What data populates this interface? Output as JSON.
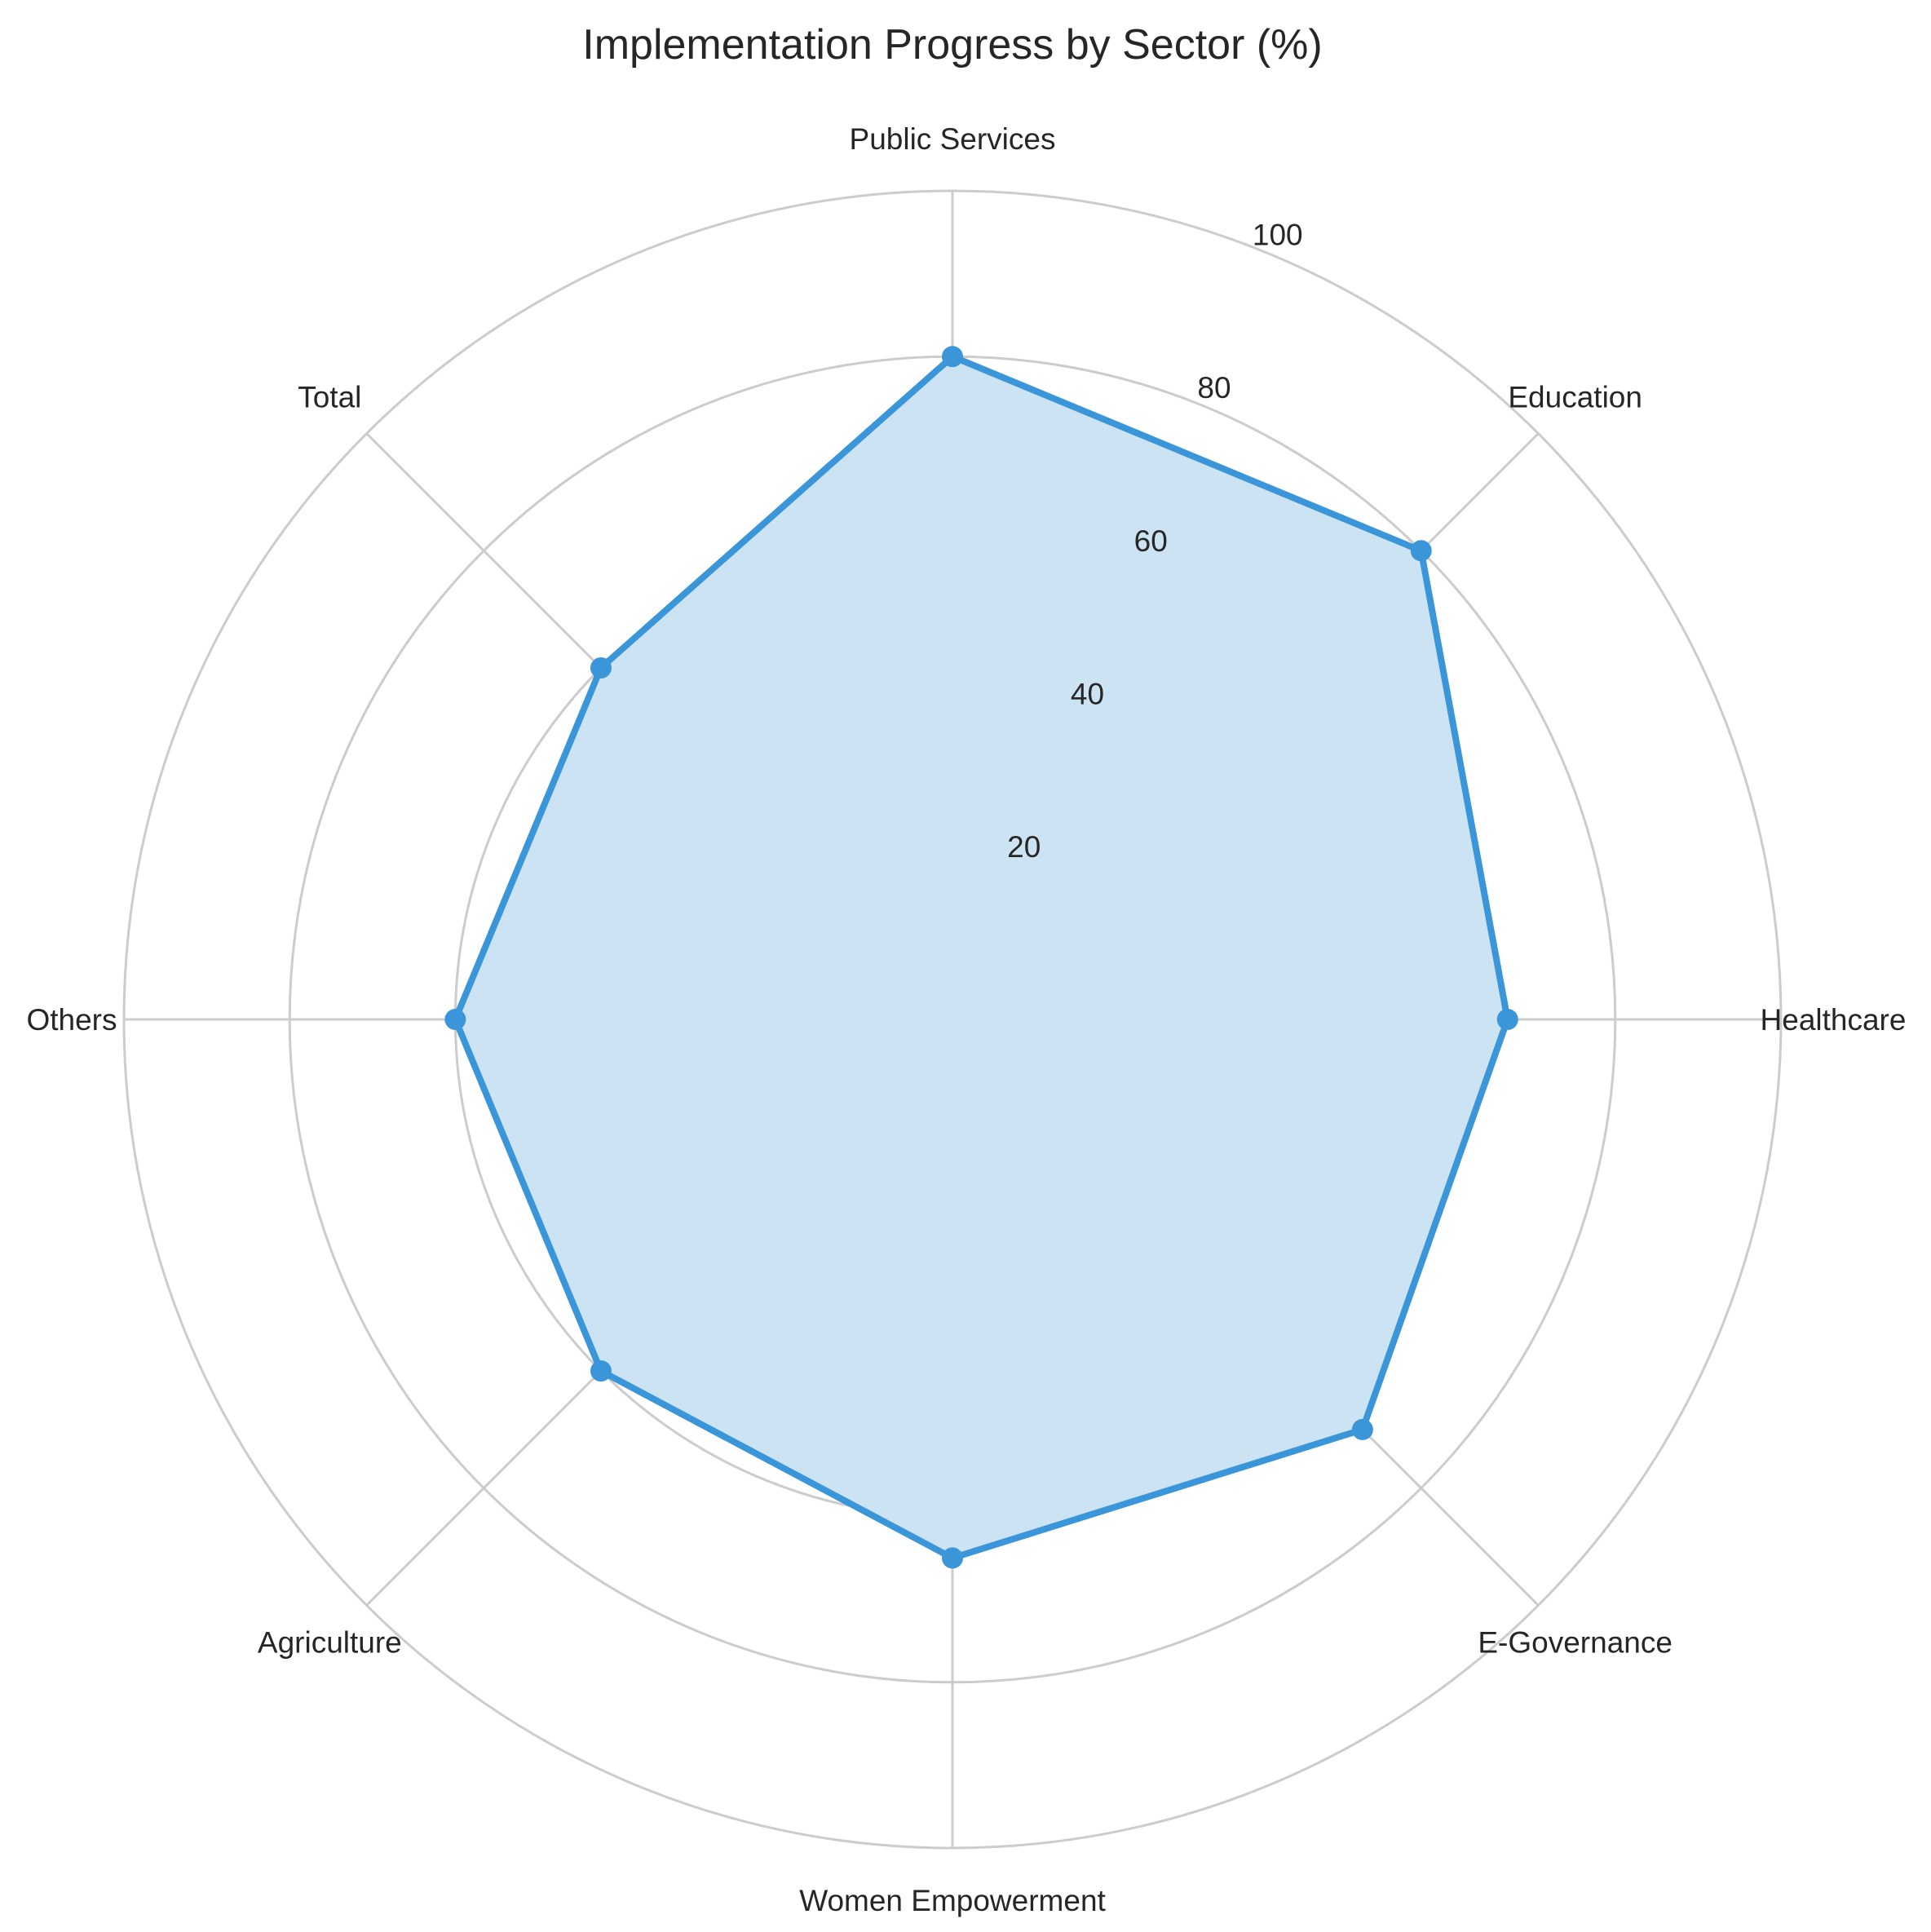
{
  "chart_data": {
    "type": "radar",
    "title": "Implementation Progress by Sector (%)",
    "categories": [
      "Public Services",
      "Education",
      "Healthcare",
      "E-Governance",
      "Women Empowerment",
      "Agriculture",
      "Others",
      "Total"
    ],
    "series": [
      {
        "values": [
          80,
          80,
          67,
          70,
          65,
          60,
          60,
          60
        ],
        "color": "#3a96d8",
        "fill": "#cce3f3"
      }
    ],
    "rlim": [
      0,
      100
    ],
    "r_ticks": [
      20,
      40,
      60,
      80,
      100
    ],
    "r_tick_labels": [
      "20",
      "40",
      "60",
      "80",
      "100"
    ],
    "grid": true,
    "grid_color": "#cccccc"
  }
}
